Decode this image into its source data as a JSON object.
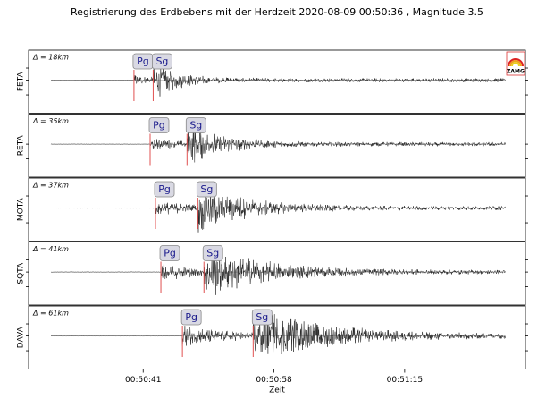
{
  "chart_data": {
    "type": "seismogram",
    "title": "Registrierung des Erdbebens mit der Herdzeit 2020-08-09 00:50:36 , Magnitude 3.5",
    "xlabel": "Zeit",
    "logo": "ZAMG",
    "xlim": [
      -9.9,
      54.7
    ],
    "xticks": [
      {
        "value": 5,
        "label": "00:50:41"
      },
      {
        "value": 22,
        "label": "00:50:58"
      },
      {
        "value": 39,
        "label": "00:51:15"
      }
    ],
    "stations": [
      {
        "name": "FETA",
        "distance": "Δ = 18km",
        "picks": [
          {
            "label": "Pg",
            "time": 3.8
          },
          {
            "label": "Sg",
            "time": 6.3
          }
        ]
      },
      {
        "name": "RETA",
        "distance": "Δ = 35km",
        "picks": [
          {
            "label": "Pg",
            "time": 5.9
          },
          {
            "label": "Sg",
            "time": 10.7
          }
        ]
      },
      {
        "name": "MOTA",
        "distance": "Δ = 37km",
        "picks": [
          {
            "label": "Pg",
            "time": 6.6
          },
          {
            "label": "Sg",
            "time": 12.1
          }
        ]
      },
      {
        "name": "SQTA",
        "distance": "Δ = 41km",
        "picks": [
          {
            "label": "Pg",
            "time": 7.3
          },
          {
            "label": "Sg",
            "time": 12.9
          }
        ]
      },
      {
        "name": "DAVA",
        "distance": "Δ = 61km",
        "picks": [
          {
            "label": "Pg",
            "time": 10.1
          },
          {
            "label": "Sg",
            "time": 19.3
          }
        ]
      }
    ]
  }
}
